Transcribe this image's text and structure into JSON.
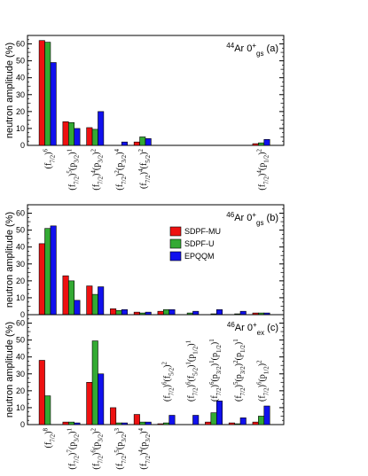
{
  "colors": {
    "SDPF-MU": "#ee1111",
    "SDPF-U": "#33aa33",
    "EPQQM": "#1111ee"
  },
  "y_axis_label": "neutron amplitude (%)",
  "legend": [
    "SDPF-MU",
    "SDPF-U",
    "EPQQM"
  ],
  "chart_data": [
    {
      "type": "bar",
      "panel": "a",
      "label": {
        "nucleus": "44Ar",
        "state": "0",
        "state_sub": "gs",
        "tag": "(a)"
      },
      "ylim": [
        0,
        65
      ],
      "yticks": [
        0,
        10,
        20,
        30,
        40,
        50,
        60
      ],
      "categories": [
        {
          "text": "(f7/2)6",
          "segments": [
            [
              "(f",
              ""
            ],
            [
              "7/2",
              "sub"
            ],
            [
              ")",
              ""
            ],
            [
              "6",
              "sup"
            ]
          ]
        },
        {
          "text": "(f7/2)5(p3/2)1",
          "segments": [
            [
              "(f",
              ""
            ],
            [
              "7/2",
              "sub"
            ],
            [
              ")",
              ""
            ],
            [
              "5",
              "sup"
            ],
            [
              "(p",
              ""
            ],
            [
              "3/2",
              "sub"
            ],
            [
              ")",
              ""
            ],
            [
              "1",
              "sup"
            ]
          ]
        },
        {
          "text": "(f7/2)4(p3/2)2",
          "segments": [
            [
              "(f",
              ""
            ],
            [
              "7/2",
              "sub"
            ],
            [
              ")",
              ""
            ],
            [
              "4",
              "sup"
            ],
            [
              "(p",
              ""
            ],
            [
              "3/2",
              "sub"
            ],
            [
              ")",
              ""
            ],
            [
              "2",
              "sup"
            ]
          ]
        },
        {
          "text": "(f7/2)2(p3/2)4",
          "segments": [
            [
              "(f",
              ""
            ],
            [
              "7/2",
              "sub"
            ],
            [
              ")",
              ""
            ],
            [
              "2",
              "sup"
            ],
            [
              "(p",
              ""
            ],
            [
              "3/2",
              "sub"
            ],
            [
              ")",
              ""
            ],
            [
              "4",
              "sup"
            ]
          ]
        },
        {
          "text": "(f7/2)4(f5/2)2",
          "segments": [
            [
              "(f",
              ""
            ],
            [
              "7/2",
              "sub"
            ],
            [
              ")",
              ""
            ],
            [
              "4",
              "sup"
            ],
            [
              "(f",
              ""
            ],
            [
              "5/2",
              "sub"
            ],
            [
              ")",
              ""
            ],
            [
              "2",
              "sup"
            ]
          ]
        },
        {
          "text": "",
          "segments": []
        },
        {
          "text": "",
          "segments": []
        },
        {
          "text": "",
          "segments": []
        },
        {
          "text": "",
          "segments": []
        },
        {
          "text": "(f7/2)4(p1/2)2",
          "segments": [
            [
              "(f",
              ""
            ],
            [
              "7/2",
              "sub"
            ],
            [
              ")",
              ""
            ],
            [
              "4",
              "sup"
            ],
            [
              "(p",
              ""
            ],
            [
              "1/2",
              "sub"
            ],
            [
              ")",
              ""
            ],
            [
              "2",
              "sup"
            ]
          ]
        }
      ],
      "series": [
        {
          "name": "SDPF-MU",
          "values": [
            62,
            14,
            10.5,
            0,
            2,
            0,
            0,
            0,
            0,
            1
          ]
        },
        {
          "name": "SDPF-U",
          "values": [
            61,
            13.5,
            9.5,
            0,
            5,
            0,
            0,
            0,
            0,
            1.5
          ]
        },
        {
          "name": "EPQQM",
          "values": [
            49,
            10,
            20,
            2,
            4,
            0,
            0,
            0,
            0,
            3.5
          ]
        }
      ]
    },
    {
      "type": "bar",
      "panel": "b",
      "label": {
        "nucleus": "46Ar",
        "state": "0",
        "state_sub": "gs",
        "tag": "(b)"
      },
      "ylim": [
        0,
        65
      ],
      "yticks": [
        0,
        10,
        20,
        30,
        40,
        50,
        60
      ],
      "categories": [
        {
          "text": "",
          "segments": []
        },
        {
          "text": "",
          "segments": []
        },
        {
          "text": "",
          "segments": []
        },
        {
          "text": "",
          "segments": []
        },
        {
          "text": "",
          "segments": []
        },
        {
          "text": "",
          "segments": []
        },
        {
          "text": "",
          "segments": []
        },
        {
          "text": "",
          "segments": []
        },
        {
          "text": "",
          "segments": []
        },
        {
          "text": "",
          "segments": []
        }
      ],
      "series": [
        {
          "name": "SDPF-MU",
          "values": [
            42,
            23,
            17,
            3.5,
            1.5,
            2,
            0,
            0,
            0,
            1
          ]
        },
        {
          "name": "SDPF-U",
          "values": [
            51,
            20,
            12,
            2.5,
            1,
            3,
            1,
            0.5,
            0.5,
            1
          ]
        },
        {
          "name": "EPQQM",
          "values": [
            52.5,
            8.5,
            16.5,
            3,
            1.5,
            3,
            2,
            3,
            2,
            1
          ]
        }
      ]
    },
    {
      "type": "bar",
      "panel": "c",
      "label": {
        "nucleus": "46Ar",
        "state": "0",
        "state_sub": "ex",
        "tag": "(c)"
      },
      "ylim": [
        0,
        65
      ],
      "yticks": [
        0,
        10,
        20,
        30,
        40,
        50,
        60
      ],
      "categories": [
        {
          "text": "(f7/2)8",
          "segments": [
            [
              "(f",
              ""
            ],
            [
              "7/2",
              "sub"
            ],
            [
              ")",
              ""
            ],
            [
              "8",
              "sup"
            ]
          ]
        },
        {
          "text": "(f7/2)7(p3/2)1",
          "segments": [
            [
              "(f",
              ""
            ],
            [
              "7/2",
              "sub"
            ],
            [
              ")",
              ""
            ],
            [
              "7",
              "sup"
            ],
            [
              "(p",
              ""
            ],
            [
              "3/2",
              "sub"
            ],
            [
              ")",
              ""
            ],
            [
              "1",
              "sup"
            ]
          ]
        },
        {
          "text": "(f7/2)6(p3/2)2",
          "segments": [
            [
              "(f",
              ""
            ],
            [
              "7/2",
              "sub"
            ],
            [
              ")",
              ""
            ],
            [
              "6",
              "sup"
            ],
            [
              "(p",
              ""
            ],
            [
              "3/2",
              "sub"
            ],
            [
              ")",
              ""
            ],
            [
              "2",
              "sup"
            ]
          ]
        },
        {
          "text": "(f7/2)5(p3/2)3",
          "segments": [
            [
              "(f",
              ""
            ],
            [
              "7/2",
              "sub"
            ],
            [
              ")",
              ""
            ],
            [
              "5",
              "sup"
            ],
            [
              "(p",
              ""
            ],
            [
              "3/2",
              "sub"
            ],
            [
              ")",
              ""
            ],
            [
              "3",
              "sup"
            ]
          ]
        },
        {
          "text": "(f7/2)4(p3/2)4",
          "segments": [
            [
              "(f",
              ""
            ],
            [
              "7/2",
              "sub"
            ],
            [
              ")",
              ""
            ],
            [
              "4",
              "sup"
            ],
            [
              "(p",
              ""
            ],
            [
              "3/2",
              "sub"
            ],
            [
              ")",
              ""
            ],
            [
              "4",
              "sup"
            ]
          ]
        },
        {
          "text": "(f7/2)6(f5/2)2",
          "segments": [
            [
              "(f",
              ""
            ],
            [
              "7/2",
              "sub"
            ],
            [
              ")",
              ""
            ],
            [
              "6",
              "sup"
            ],
            [
              "(f",
              ""
            ],
            [
              "5/2",
              "sub"
            ],
            [
              ")",
              ""
            ],
            [
              "2",
              "sup"
            ]
          ]
        },
        {
          "text": "(f7/2)6(f5/2)1(p1/2)1",
          "segments": [
            [
              "(f",
              ""
            ],
            [
              "7/2",
              "sub"
            ],
            [
              ")",
              ""
            ],
            [
              "6",
              "sup"
            ],
            [
              "(f",
              ""
            ],
            [
              "5/2",
              "sub"
            ],
            [
              ")",
              ""
            ],
            [
              "1",
              "sup"
            ],
            [
              "(p",
              ""
            ],
            [
              "1/2",
              "sub"
            ],
            [
              ")",
              ""
            ],
            [
              "1",
              "sup"
            ]
          ]
        },
        {
          "text": "(f7/2)6(p3/2)1(p1/2)1",
          "segments": [
            [
              "(f",
              ""
            ],
            [
              "7/2",
              "sub"
            ],
            [
              ")",
              ""
            ],
            [
              "6",
              "sup"
            ],
            [
              "(p",
              ""
            ],
            [
              "3/2",
              "sub"
            ],
            [
              ")",
              ""
            ],
            [
              "1",
              "sup"
            ],
            [
              "(p",
              ""
            ],
            [
              "1/2",
              "sub"
            ],
            [
              ")",
              ""
            ],
            [
              "1",
              "sup"
            ]
          ]
        },
        {
          "text": "(f7/2)5(p3/2)2(p1/2)1",
          "segments": [
            [
              "(f",
              ""
            ],
            [
              "7/2",
              "sub"
            ],
            [
              ")",
              ""
            ],
            [
              "5",
              "sup"
            ],
            [
              "(p",
              ""
            ],
            [
              "3/2",
              "sub"
            ],
            [
              ")",
              ""
            ],
            [
              "2",
              "sup"
            ],
            [
              "(p",
              ""
            ],
            [
              "1/2",
              "sub"
            ],
            [
              ")",
              ""
            ],
            [
              "1",
              "sup"
            ]
          ]
        },
        {
          "text": "(f7/2)6(p1/2)2",
          "segments": [
            [
              "(f",
              ""
            ],
            [
              "7/2",
              "sub"
            ],
            [
              ")",
              ""
            ],
            [
              "6",
              "sup"
            ],
            [
              "(p",
              ""
            ],
            [
              "1/2",
              "sub"
            ],
            [
              ")",
              ""
            ],
            [
              "2",
              "sup"
            ]
          ]
        }
      ],
      "series": [
        {
          "name": "SDPF-MU",
          "values": [
            38,
            1.5,
            25,
            10,
            6,
            0.5,
            0,
            1.5,
            1,
            1.5
          ]
        },
        {
          "name": "SDPF-U",
          "values": [
            17,
            1.5,
            49.5,
            1,
            1.5,
            1,
            0,
            7,
            0.5,
            5
          ]
        },
        {
          "name": "EPQQM",
          "values": [
            0,
            1,
            30,
            1,
            1.5,
            5.5,
            5.5,
            14,
            4,
            11
          ]
        }
      ]
    }
  ]
}
